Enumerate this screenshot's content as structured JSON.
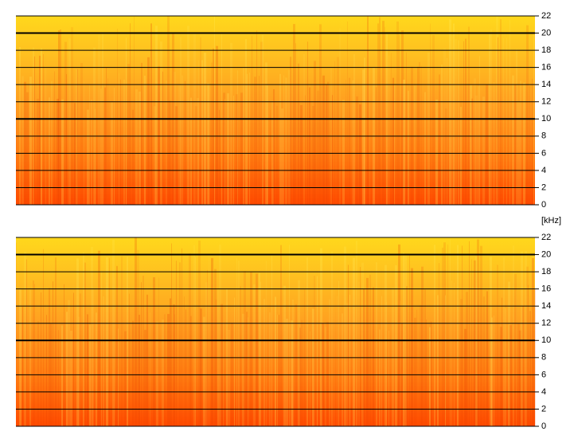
{
  "chart_data": [
    {
      "type": "spectrogram",
      "y_label": "[kHz]",
      "ylim": [
        0,
        22
      ],
      "yticks": [
        0,
        2,
        4,
        6,
        8,
        10,
        12,
        14,
        16,
        18,
        20,
        22
      ],
      "grid": true
    },
    {
      "type": "spectrogram",
      "ylim": [
        0,
        22
      ],
      "yticks": [
        0,
        2,
        4,
        6,
        8,
        10,
        12,
        14,
        16,
        18,
        20,
        22
      ],
      "grid": true
    }
  ]
}
